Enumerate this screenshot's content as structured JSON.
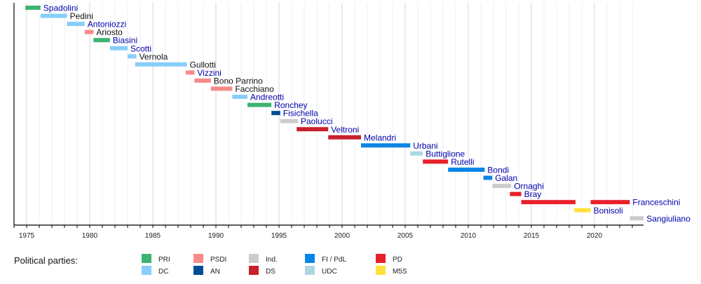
{
  "chart_data": {
    "type": "timeline",
    "title": "",
    "xlabel": "",
    "ylabel": "",
    "xlim": [
      1974,
      2024
    ],
    "x_major_ticks": [
      1975,
      1980,
      1985,
      1990,
      1995,
      2000,
      2005,
      2010,
      2015,
      2020
    ],
    "x_tick_labels": [
      "1975",
      "1980",
      "1985",
      "1990",
      "1995",
      "2000",
      "2005",
      "2010",
      "2015",
      "2020"
    ],
    "grid": "vertical, major every 5 years, minor every year",
    "legend_title": "Political parties:",
    "legend_placement": "bottom",
    "parties": [
      {
        "key": "PRI",
        "label": "PRI",
        "color": "#3cb371"
      },
      {
        "key": "DC",
        "label": "DC",
        "color": "#87cefa"
      },
      {
        "key": "PSDI",
        "label": "PSDI",
        "color": "#f88a8a"
      },
      {
        "key": "AN",
        "label": "AN",
        "color": "#004e96"
      },
      {
        "key": "Ind",
        "label": "Ind.",
        "color": "#cccccc"
      },
      {
        "key": "DS",
        "label": "DS",
        "color": "#c8202d"
      },
      {
        "key": "FI",
        "label": "FI / PdL",
        "color": "#0a85e6"
      },
      {
        "key": "UDC",
        "label": "UDC",
        "color": "#aed6e2"
      },
      {
        "key": "PD",
        "label": "PD",
        "color": "#e8202a"
      },
      {
        "key": "M5S",
        "label": "M5S",
        "color": "#ffe23c"
      }
    ],
    "ministers": [
      {
        "name": "Spadolini",
        "linked": true,
        "terms": [
          {
            "start": 1974.9,
            "end": 1976.1,
            "party": "PRI"
          }
        ]
      },
      {
        "name": "Pedini",
        "linked": false,
        "terms": [
          {
            "start": 1976.1,
            "end": 1978.2,
            "party": "DC"
          }
        ]
      },
      {
        "name": "Antoniozzi",
        "linked": true,
        "terms": [
          {
            "start": 1978.2,
            "end": 1979.6,
            "party": "DC"
          }
        ]
      },
      {
        "name": "Ariosto",
        "linked": false,
        "terms": [
          {
            "start": 1979.6,
            "end": 1980.3,
            "party": "PSDI"
          }
        ]
      },
      {
        "name": "Biasini",
        "linked": true,
        "terms": [
          {
            "start": 1980.3,
            "end": 1981.6,
            "party": "PRI"
          }
        ]
      },
      {
        "name": "Scotti",
        "linked": true,
        "terms": [
          {
            "start": 1981.6,
            "end": 1983.0,
            "party": "DC"
          }
        ]
      },
      {
        "name": "Vernola",
        "linked": false,
        "terms": [
          {
            "start": 1983.0,
            "end": 1983.7,
            "party": "DC"
          }
        ]
      },
      {
        "name": "Gullotti",
        "linked": false,
        "terms": [
          {
            "start": 1983.6,
            "end": 1987.7,
            "party": "DC"
          }
        ]
      },
      {
        "name": "Vizzini",
        "linked": true,
        "terms": [
          {
            "start": 1987.6,
            "end": 1988.3,
            "party": "PSDI"
          }
        ]
      },
      {
        "name": "Bono Parrino",
        "linked": false,
        "terms": [
          {
            "start": 1988.3,
            "end": 1989.6,
            "party": "PSDI"
          }
        ]
      },
      {
        "name": "Facchiano",
        "linked": false,
        "terms": [
          {
            "start": 1989.6,
            "end": 1991.3,
            "party": "PSDI"
          }
        ]
      },
      {
        "name": "Andreotti",
        "linked": true,
        "terms": [
          {
            "start": 1991.3,
            "end": 1992.5,
            "party": "DC"
          }
        ]
      },
      {
        "name": "Ronchey",
        "linked": true,
        "terms": [
          {
            "start": 1992.5,
            "end": 1994.4,
            "party": "PRI"
          }
        ]
      },
      {
        "name": "Fisichella",
        "linked": true,
        "terms": [
          {
            "start": 1994.4,
            "end": 1995.1,
            "party": "AN"
          }
        ]
      },
      {
        "name": "Paolucci",
        "linked": true,
        "terms": [
          {
            "start": 1995.1,
            "end": 1996.5,
            "party": "Ind"
          }
        ]
      },
      {
        "name": "Veltroni",
        "linked": true,
        "terms": [
          {
            "start": 1996.4,
            "end": 1998.9,
            "party": "DS"
          }
        ]
      },
      {
        "name": "Melandri",
        "linked": true,
        "terms": [
          {
            "start": 1998.9,
            "end": 2001.5,
            "party": "DS"
          }
        ]
      },
      {
        "name": "Urbani",
        "linked": true,
        "terms": [
          {
            "start": 2001.5,
            "end": 2005.4,
            "party": "FI"
          }
        ]
      },
      {
        "name": "Buttiglione",
        "linked": true,
        "terms": [
          {
            "start": 2005.4,
            "end": 2006.4,
            "party": "UDC"
          }
        ]
      },
      {
        "name": "Rutelli",
        "linked": true,
        "terms": [
          {
            "start": 2006.4,
            "end": 2008.4,
            "party": "PD"
          }
        ]
      },
      {
        "name": "Bondi",
        "linked": true,
        "terms": [
          {
            "start": 2008.4,
            "end": 2011.3,
            "party": "FI"
          }
        ]
      },
      {
        "name": "Galan",
        "linked": true,
        "terms": [
          {
            "start": 2011.2,
            "end": 2011.9,
            "party": "FI"
          }
        ]
      },
      {
        "name": "Ornaghi",
        "linked": true,
        "terms": [
          {
            "start": 2011.9,
            "end": 2013.4,
            "party": "Ind"
          }
        ]
      },
      {
        "name": "Bray",
        "linked": true,
        "terms": [
          {
            "start": 2013.3,
            "end": 2014.2,
            "party": "PD"
          }
        ]
      },
      {
        "name": "Franceschini",
        "linked": true,
        "terms": [
          {
            "start": 2014.2,
            "end": 2018.5,
            "party": "PD"
          },
          {
            "start": 2019.7,
            "end": 2022.8,
            "party": "PD"
          }
        ]
      },
      {
        "name": "Bonisoli",
        "linked": true,
        "terms": [
          {
            "start": 2018.4,
            "end": 2019.7,
            "party": "M5S"
          }
        ]
      },
      {
        "name": "Sangiuliano",
        "linked": true,
        "terms": [
          {
            "start": 2022.8,
            "end": 2023.9,
            "party": "Ind"
          }
        ]
      }
    ],
    "label_colors": {
      "linked": "#0000aa",
      "unlinked": "#111111"
    }
  }
}
